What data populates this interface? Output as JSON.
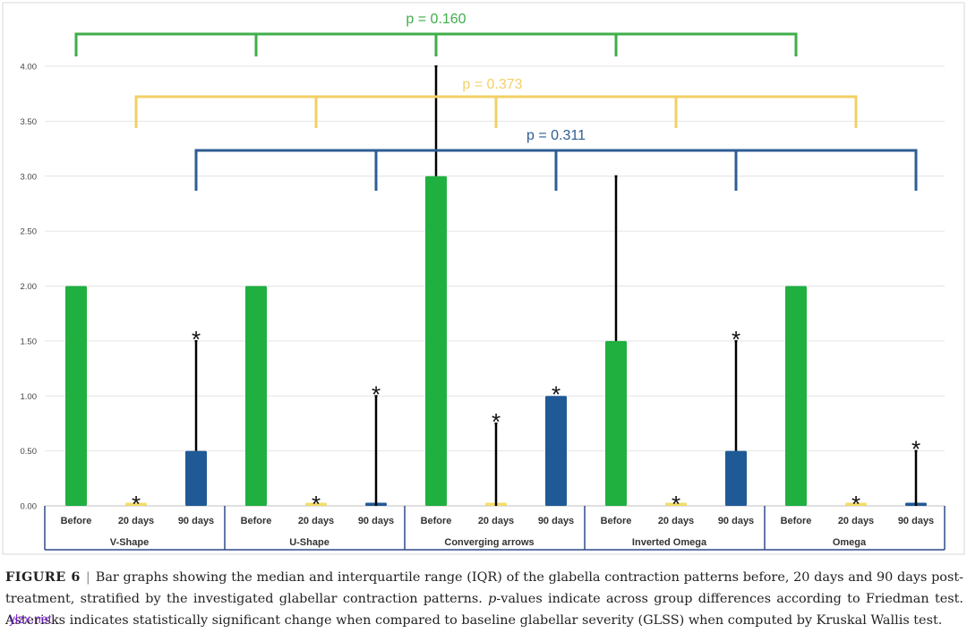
{
  "chart_data": {
    "type": "bar",
    "groups": [
      "V-Shape",
      "U-Shape",
      "Converging arrows",
      "Inverted Omega",
      "Omega"
    ],
    "timepoints": [
      "Before",
      "20 days",
      "90 days"
    ],
    "ylim": [
      0,
      4
    ],
    "yticks": [
      "0.00",
      "0.50",
      "1.00",
      "1.50",
      "2.00",
      "2.50",
      "3.00",
      "3.50",
      "4.00"
    ],
    "series": [
      {
        "name": "Before",
        "color": "#1fb040",
        "median": [
          2,
          2,
          3,
          1.5,
          2
        ],
        "upper": [
          2,
          2,
          4,
          3,
          2
        ]
      },
      {
        "name": "20 days",
        "color": "#f2dd6a",
        "median": [
          0,
          0,
          0,
          0,
          0
        ],
        "upper": [
          0,
          0,
          0.75,
          0,
          0
        ]
      },
      {
        "name": "90 days",
        "color": "#1f5a96",
        "median": [
          0.5,
          0,
          1,
          0.5,
          0
        ],
        "upper": [
          1.5,
          1,
          1,
          1.5,
          0.5
        ]
      }
    ],
    "significance_star": "*",
    "significant": [
      [
        false,
        true,
        true
      ],
      [
        false,
        true,
        true
      ],
      [
        false,
        true,
        true
      ],
      [
        false,
        true,
        true
      ],
      [
        false,
        true,
        true
      ]
    ],
    "brackets": [
      {
        "label": "p = 0.160",
        "series": "Before",
        "color": "#3fae49"
      },
      {
        "label": "p = 0.373",
        "series": "20 days",
        "color": "#f2d067"
      },
      {
        "label": "p = 0.311",
        "series": "90 days",
        "color": "#2f5d94"
      }
    ]
  },
  "caption": {
    "figure_label": "FIGURE 6",
    "separator": "|",
    "text_1": "Bar graphs showing the median and interquartile range (IQR) of the glabella contraction patterns before, 20 days and 90 days post-treatment, stratified by the investigated glabellar contraction patterns.",
    "p_values": "p",
    "text_2": "-values indicate across group differences according to Friedman test. Asterisks indicates statistically significant change when compared to baseline glabellar severity (GLSS) when computed by Kruskal Wallis test."
  },
  "watermark": "ylzx.net"
}
